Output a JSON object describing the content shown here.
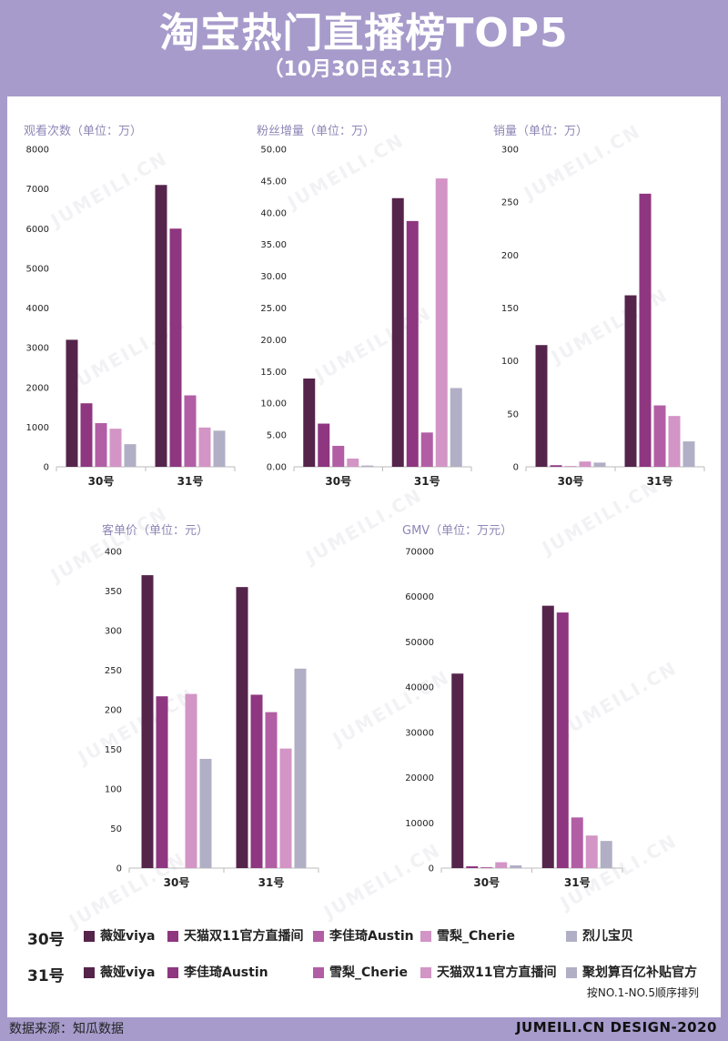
{
  "header": {
    "title": "淘宝热门直播榜TOP5",
    "subtitle": "（10月30日&31日）"
  },
  "colors": [
    "#55244b",
    "#8e3680",
    "#b25ea5",
    "#d295c5",
    "#b1afc5"
  ],
  "charts": [
    {
      "id": "views",
      "type": "bar",
      "title": "观看次数（单位：万）",
      "categories": [
        "30号",
        "31号"
      ],
      "ylim": [
        0,
        8000
      ],
      "ticks": [
        0,
        1000,
        2000,
        3000,
        4000,
        5000,
        6000,
        7000,
        8000
      ],
      "tick_labels": [
        "0",
        "1000",
        "2000",
        "3000",
        "4000",
        "5000",
        "6000",
        "7000",
        "8000"
      ],
      "values": [
        [
          3200,
          1600,
          1100,
          960,
          570
        ],
        [
          7100,
          6000,
          1800,
          990,
          910
        ]
      ]
    },
    {
      "id": "fans",
      "type": "bar",
      "title": "粉丝增量（单位：万）",
      "categories": [
        "30号",
        "31号"
      ],
      "ylim": [
        0,
        50
      ],
      "ticks": [
        0,
        5,
        10,
        15,
        20,
        25,
        30,
        35,
        40,
        45,
        50
      ],
      "tick_labels": [
        "0.00",
        "5.00",
        "10.00",
        "15.00",
        "20.00",
        "25.00",
        "30.00",
        "35.00",
        "40.00",
        "45.00",
        "50.00"
      ],
      "values": [
        [
          13.9,
          6.8,
          3.3,
          1.3,
          0.2
        ],
        [
          42.3,
          38.7,
          5.4,
          45.4,
          12.4
        ]
      ]
    },
    {
      "id": "sales",
      "type": "bar",
      "title": "销量（单位：万）",
      "categories": [
        "30号",
        "31号"
      ],
      "ylim": [
        0,
        300
      ],
      "ticks": [
        0,
        50,
        100,
        150,
        200,
        250,
        300
      ],
      "tick_labels": [
        "0",
        "50",
        "100",
        "150",
        "200",
        "250",
        "300"
      ],
      "values": [
        [
          115,
          1.5,
          0.5,
          5,
          4
        ],
        [
          162,
          258,
          58,
          48,
          24
        ]
      ]
    },
    {
      "id": "aov",
      "type": "bar",
      "title": "客单价（单位：元）",
      "categories": [
        "30号",
        "31号"
      ],
      "ylim": [
        0,
        400
      ],
      "ticks": [
        0,
        50,
        100,
        150,
        200,
        250,
        300,
        350,
        400
      ],
      "tick_labels": [
        "0",
        "50",
        "100",
        "150",
        "200",
        "250",
        "300",
        "350",
        "400"
      ],
      "values": [
        [
          370,
          217,
          0,
          220,
          138
        ],
        [
          355,
          219,
          197,
          151,
          252
        ]
      ]
    },
    {
      "id": "gmv",
      "type": "bar",
      "title": "GMV（单位：万元）",
      "categories": [
        "30号",
        "31号"
      ],
      "ylim": [
        0,
        70000
      ],
      "ticks": [
        0,
        10000,
        20000,
        30000,
        40000,
        50000,
        60000,
        70000
      ],
      "tick_labels": [
        "0",
        "10000",
        "20000",
        "30000",
        "40000",
        "50000",
        "60000",
        "70000"
      ],
      "values": [
        [
          43000,
          400,
          200,
          1300,
          600
        ],
        [
          58000,
          56500,
          11200,
          7200,
          6000
        ]
      ]
    }
  ],
  "chart_data": [
    {
      "type": "bar",
      "title": "观看次数（单位：万）",
      "categories": [
        "30号",
        "31号"
      ],
      "ylim": [
        0,
        8000
      ],
      "series": [
        {
          "name": "NO.1",
          "values": [
            3200,
            7100
          ]
        },
        {
          "name": "NO.2",
          "values": [
            1600,
            6000
          ]
        },
        {
          "name": "NO.3",
          "values": [
            1100,
            1800
          ]
        },
        {
          "name": "NO.4",
          "values": [
            960,
            990
          ]
        },
        {
          "name": "NO.5",
          "values": [
            570,
            910
          ]
        }
      ]
    },
    {
      "type": "bar",
      "title": "粉丝增量（单位：万）",
      "categories": [
        "30号",
        "31号"
      ],
      "ylim": [
        0,
        50
      ],
      "series": [
        {
          "name": "NO.1",
          "values": [
            13.9,
            42.3
          ]
        },
        {
          "name": "NO.2",
          "values": [
            6.8,
            38.7
          ]
        },
        {
          "name": "NO.3",
          "values": [
            3.3,
            5.4
          ]
        },
        {
          "name": "NO.4",
          "values": [
            1.3,
            45.4
          ]
        },
        {
          "name": "NO.5",
          "values": [
            0.2,
            12.4
          ]
        }
      ]
    },
    {
      "type": "bar",
      "title": "销量（单位：万）",
      "categories": [
        "30号",
        "31号"
      ],
      "ylim": [
        0,
        300
      ],
      "series": [
        {
          "name": "NO.1",
          "values": [
            115,
            162
          ]
        },
        {
          "name": "NO.2",
          "values": [
            1.5,
            258
          ]
        },
        {
          "name": "NO.3",
          "values": [
            0.5,
            58
          ]
        },
        {
          "name": "NO.4",
          "values": [
            5,
            48
          ]
        },
        {
          "name": "NO.5",
          "values": [
            4,
            24
          ]
        }
      ]
    },
    {
      "type": "bar",
      "title": "客单价（单位：元）",
      "categories": [
        "30号",
        "31号"
      ],
      "ylim": [
        0,
        400
      ],
      "series": [
        {
          "name": "NO.1",
          "values": [
            370,
            355
          ]
        },
        {
          "name": "NO.2",
          "values": [
            217,
            219
          ]
        },
        {
          "name": "NO.3",
          "values": [
            0,
            197
          ]
        },
        {
          "name": "NO.4",
          "values": [
            220,
            151
          ]
        },
        {
          "name": "NO.5",
          "values": [
            138,
            252
          ]
        }
      ]
    },
    {
      "type": "bar",
      "title": "GMV（单位：万元）",
      "categories": [
        "30号",
        "31号"
      ],
      "ylim": [
        0,
        70000
      ],
      "series": [
        {
          "name": "NO.1",
          "values": [
            43000,
            58000
          ]
        },
        {
          "name": "NO.2",
          "values": [
            400,
            56500
          ]
        },
        {
          "name": "NO.3",
          "values": [
            200,
            11200
          ]
        },
        {
          "name": "NO.4",
          "values": [
            1300,
            7200
          ]
        },
        {
          "name": "NO.5",
          "values": [
            600,
            6000
          ]
        }
      ]
    }
  ],
  "legend": {
    "rows": [
      {
        "label": "30号",
        "items": [
          "薇娅viya",
          "天猫双11官方直播间",
          "李佳琦Austin",
          "雪梨_Cherie",
          "烈儿宝贝"
        ]
      },
      {
        "label": "31号",
        "items": [
          "薇娅viya",
          "李佳琦Austin",
          "雪梨_Cherie",
          "天猫双11官方直播间",
          "聚划算百亿补贴官方"
        ]
      }
    ],
    "note": "按NO.1-NO.5顺序排列"
  },
  "watermark": "JUMEILI.CN",
  "footer": {
    "source": "数据来源：知瓜数据",
    "brand": "JUMEILI.CN DESIGN-2020"
  }
}
